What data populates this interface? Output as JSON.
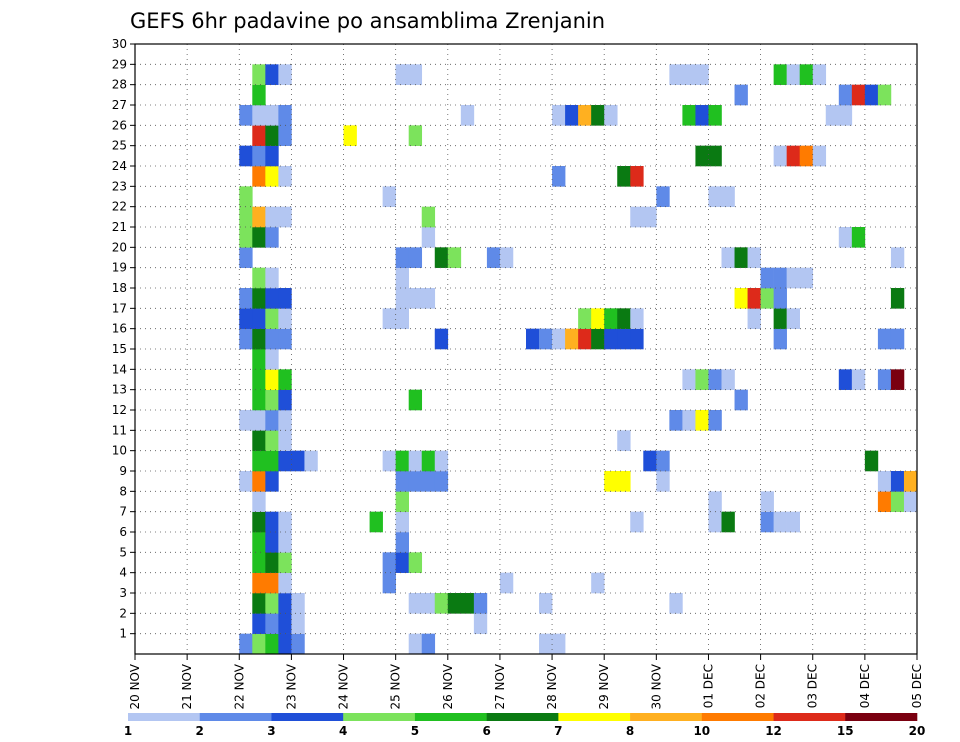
{
  "chart_data": {
    "type": "heatmap",
    "title": "GEFS 6hr padavine po ansamblima Zrenjanin",
    "x_ticks": [
      "20 NOV",
      "21 NOV",
      "22 NOV",
      "23 NOV",
      "24 NOV",
      "25 NOV",
      "26 NOV",
      "27 NOV",
      "28 NOV",
      "29 NOV",
      "30 NOV",
      "01 DEC",
      "02 DEC",
      "03 DEC",
      "04 DEC",
      "05 DEC"
    ],
    "y_ticks": [
      1,
      2,
      3,
      4,
      5,
      6,
      7,
      8,
      9,
      10,
      11,
      12,
      13,
      14,
      15,
      16,
      17,
      18,
      19,
      20,
      21,
      22,
      23,
      24,
      25,
      26,
      27,
      28,
      29,
      30
    ],
    "ylim": [
      0,
      30
    ],
    "steps_per_day": 4,
    "grid": "dotted",
    "colorbar": {
      "labels": [
        "1",
        "2",
        "3",
        "4",
        "5",
        "6",
        "7",
        "8",
        "10",
        "12",
        "15",
        "20"
      ],
      "colors": [
        "#b3c6f2",
        "#5f8ae8",
        "#1f4fd8",
        "#7ce35c",
        "#20c020",
        "#0a7a12",
        "#ffff00",
        "#ffb020",
        "#ff7b00",
        "#dd2a1a",
        "#7a0010"
      ]
    },
    "cells": [
      [
        0,
        8,
        2
      ],
      [
        0,
        9,
        4
      ],
      [
        0,
        10,
        5
      ],
      [
        0,
        11,
        3
      ],
      [
        0,
        12,
        2
      ],
      [
        0,
        21,
        1
      ],
      [
        0,
        22,
        2
      ],
      [
        0,
        31,
        1
      ],
      [
        0,
        32,
        1
      ],
      [
        1,
        9,
        3
      ],
      [
        1,
        10,
        2
      ],
      [
        1,
        11,
        3
      ],
      [
        1,
        12,
        1
      ],
      [
        1,
        26,
        1
      ],
      [
        2,
        9,
        6
      ],
      [
        2,
        10,
        4
      ],
      [
        2,
        11,
        3
      ],
      [
        2,
        12,
        1
      ],
      [
        2,
        21,
        1
      ],
      [
        2,
        22,
        1
      ],
      [
        2,
        23,
        4
      ],
      [
        2,
        24,
        6
      ],
      [
        2,
        25,
        6
      ],
      [
        2,
        26,
        2
      ],
      [
        2,
        31,
        1
      ],
      [
        2,
        41,
        1
      ],
      [
        3,
        9,
        9
      ],
      [
        3,
        10,
        9
      ],
      [
        3,
        11,
        1
      ],
      [
        3,
        19,
        2
      ],
      [
        3,
        28,
        1
      ],
      [
        3,
        35,
        1
      ],
      [
        4,
        9,
        5
      ],
      [
        4,
        10,
        6
      ],
      [
        4,
        11,
        4
      ],
      [
        4,
        19,
        2
      ],
      [
        4,
        20,
        3
      ],
      [
        4,
        21,
        4
      ],
      [
        5,
        9,
        5
      ],
      [
        5,
        10,
        3
      ],
      [
        5,
        11,
        1
      ],
      [
        5,
        20,
        2
      ],
      [
        6,
        9,
        6
      ],
      [
        6,
        10,
        3
      ],
      [
        6,
        11,
        1
      ],
      [
        6,
        18,
        5
      ],
      [
        6,
        20,
        1
      ],
      [
        6,
        38,
        1
      ],
      [
        6,
        44,
        1
      ],
      [
        6,
        45,
        6
      ],
      [
        6,
        48,
        2
      ],
      [
        6,
        49,
        1
      ],
      [
        6,
        50,
        1
      ],
      [
        7,
        9,
        1
      ],
      [
        7,
        20,
        4
      ],
      [
        7,
        44,
        1
      ],
      [
        7,
        48,
        1
      ],
      [
        7,
        57,
        9
      ],
      [
        7,
        58,
        4
      ],
      [
        7,
        59,
        1
      ],
      [
        8,
        8,
        1
      ],
      [
        8,
        9,
        9
      ],
      [
        8,
        10,
        3
      ],
      [
        8,
        20,
        2
      ],
      [
        8,
        21,
        2
      ],
      [
        8,
        22,
        2
      ],
      [
        8,
        23,
        2
      ],
      [
        8,
        36,
        7
      ],
      [
        8,
        37,
        7
      ],
      [
        8,
        40,
        1
      ],
      [
        8,
        57,
        1
      ],
      [
        8,
        58,
        3
      ],
      [
        8,
        59,
        8
      ],
      [
        9,
        9,
        5
      ],
      [
        9,
        10,
        5
      ],
      [
        9,
        11,
        3
      ],
      [
        9,
        12,
        3
      ],
      [
        9,
        13,
        1
      ],
      [
        9,
        19,
        1
      ],
      [
        9,
        20,
        5
      ],
      [
        9,
        21,
        1
      ],
      [
        9,
        22,
        5
      ],
      [
        9,
        23,
        1
      ],
      [
        9,
        39,
        3
      ],
      [
        9,
        40,
        2
      ],
      [
        9,
        56,
        6
      ],
      [
        10,
        9,
        6
      ],
      [
        10,
        10,
        4
      ],
      [
        10,
        11,
        1
      ],
      [
        10,
        37,
        1
      ],
      [
        11,
        8,
        1
      ],
      [
        11,
        9,
        1
      ],
      [
        11,
        10,
        2
      ],
      [
        11,
        11,
        1
      ],
      [
        11,
        41,
        2
      ],
      [
        11,
        42,
        1
      ],
      [
        11,
        43,
        7
      ],
      [
        11,
        44,
        2
      ],
      [
        12,
        9,
        5
      ],
      [
        12,
        10,
        4
      ],
      [
        12,
        11,
        3
      ],
      [
        12,
        21,
        5
      ],
      [
        12,
        46,
        2
      ],
      [
        13,
        9,
        5
      ],
      [
        13,
        10,
        7
      ],
      [
        13,
        11,
        5
      ],
      [
        13,
        42,
        1
      ],
      [
        13,
        43,
        4
      ],
      [
        13,
        44,
        2
      ],
      [
        13,
        45,
        1
      ],
      [
        13,
        54,
        3
      ],
      [
        13,
        55,
        1
      ],
      [
        13,
        57,
        2
      ],
      [
        13,
        58,
        11
      ],
      [
        14,
        9,
        5
      ],
      [
        14,
        10,
        1
      ],
      [
        15,
        8,
        2
      ],
      [
        15,
        9,
        6
      ],
      [
        15,
        10,
        2
      ],
      [
        15,
        11,
        2
      ],
      [
        15,
        23,
        3
      ],
      [
        15,
        30,
        3
      ],
      [
        15,
        31,
        2
      ],
      [
        15,
        32,
        1
      ],
      [
        15,
        33,
        8
      ],
      [
        15,
        34,
        10
      ],
      [
        15,
        35,
        6
      ],
      [
        15,
        36,
        3
      ],
      [
        15,
        37,
        3
      ],
      [
        15,
        38,
        3
      ],
      [
        15,
        49,
        2
      ],
      [
        15,
        57,
        2
      ],
      [
        15,
        58,
        2
      ],
      [
        16,
        8,
        3
      ],
      [
        16,
        9,
        3
      ],
      [
        16,
        10,
        4
      ],
      [
        16,
        11,
        1
      ],
      [
        16,
        19,
        1
      ],
      [
        16,
        20,
        1
      ],
      [
        16,
        34,
        4
      ],
      [
        16,
        35,
        7
      ],
      [
        16,
        36,
        5
      ],
      [
        16,
        37,
        6
      ],
      [
        16,
        38,
        1
      ],
      [
        16,
        47,
        1
      ],
      [
        16,
        49,
        6
      ],
      [
        16,
        50,
        1
      ],
      [
        17,
        8,
        2
      ],
      [
        17,
        9,
        6
      ],
      [
        17,
        10,
        3
      ],
      [
        17,
        11,
        3
      ],
      [
        17,
        20,
        1
      ],
      [
        17,
        21,
        1
      ],
      [
        17,
        22,
        1
      ],
      [
        17,
        46,
        7
      ],
      [
        17,
        47,
        10
      ],
      [
        17,
        48,
        4
      ],
      [
        17,
        49,
        2
      ],
      [
        17,
        58,
        6
      ],
      [
        18,
        9,
        4
      ],
      [
        18,
        10,
        1
      ],
      [
        18,
        20,
        1
      ],
      [
        18,
        48,
        2
      ],
      [
        18,
        49,
        2
      ],
      [
        18,
        50,
        1
      ],
      [
        18,
        51,
        1
      ],
      [
        19,
        8,
        2
      ],
      [
        19,
        20,
        2
      ],
      [
        19,
        21,
        2
      ],
      [
        19,
        23,
        6
      ],
      [
        19,
        24,
        4
      ],
      [
        19,
        27,
        2
      ],
      [
        19,
        28,
        1
      ],
      [
        19,
        45,
        1
      ],
      [
        19,
        46,
        6
      ],
      [
        19,
        47,
        1
      ],
      [
        19,
        58,
        1
      ],
      [
        20,
        8,
        4
      ],
      [
        20,
        9,
        6
      ],
      [
        20,
        10,
        2
      ],
      [
        20,
        22,
        1
      ],
      [
        20,
        54,
        1
      ],
      [
        20,
        55,
        5
      ],
      [
        21,
        8,
        4
      ],
      [
        21,
        9,
        8
      ],
      [
        21,
        10,
        1
      ],
      [
        21,
        11,
        1
      ],
      [
        21,
        22,
        4
      ],
      [
        21,
        38,
        1
      ],
      [
        21,
        39,
        1
      ],
      [
        22,
        8,
        4
      ],
      [
        22,
        44,
        1
      ],
      [
        22,
        45,
        1
      ],
      [
        22,
        19,
        1
      ],
      [
        22,
        40,
        2
      ],
      [
        23,
        9,
        9
      ],
      [
        23,
        10,
        7
      ],
      [
        23,
        11,
        1
      ],
      [
        23,
        32,
        2
      ],
      [
        23,
        37,
        6
      ],
      [
        23,
        38,
        10
      ],
      [
        24,
        8,
        3
      ],
      [
        24,
        9,
        2
      ],
      [
        24,
        10,
        3
      ],
      [
        24,
        43,
        6
      ],
      [
        24,
        44,
        6
      ],
      [
        24,
        49,
        1
      ],
      [
        24,
        50,
        10
      ],
      [
        24,
        51,
        9
      ],
      [
        24,
        52,
        1
      ],
      [
        25,
        9,
        10
      ],
      [
        25,
        10,
        6
      ],
      [
        25,
        11,
        2
      ],
      [
        25,
        16,
        7
      ],
      [
        25,
        21,
        4
      ],
      [
        26,
        8,
        2
      ],
      [
        26,
        9,
        1
      ],
      [
        26,
        10,
        1
      ],
      [
        26,
        11,
        2
      ],
      [
        26,
        25,
        1
      ],
      [
        26,
        32,
        1
      ],
      [
        26,
        33,
        3
      ],
      [
        26,
        34,
        8
      ],
      [
        26,
        35,
        6
      ],
      [
        26,
        36,
        1
      ],
      [
        26,
        42,
        5
      ],
      [
        26,
        43,
        3
      ],
      [
        26,
        44,
        5
      ],
      [
        26,
        53,
        1
      ],
      [
        26,
        54,
        1
      ],
      [
        27,
        9,
        5
      ],
      [
        27,
        46,
        2
      ],
      [
        27,
        54,
        2
      ],
      [
        27,
        55,
        10
      ],
      [
        27,
        56,
        3
      ],
      [
        27,
        57,
        4
      ],
      [
        28,
        9,
        4
      ],
      [
        28,
        10,
        3
      ],
      [
        28,
        11,
        1
      ],
      [
        28,
        20,
        1
      ],
      [
        28,
        21,
        1
      ],
      [
        28,
        20,
        1
      ],
      [
        28,
        41,
        1
      ],
      [
        28,
        42,
        1
      ],
      [
        28,
        43,
        1
      ],
      [
        28,
        49,
        5
      ],
      [
        28,
        50,
        1
      ],
      [
        28,
        51,
        5
      ],
      [
        28,
        52,
        1
      ]
    ]
  }
}
